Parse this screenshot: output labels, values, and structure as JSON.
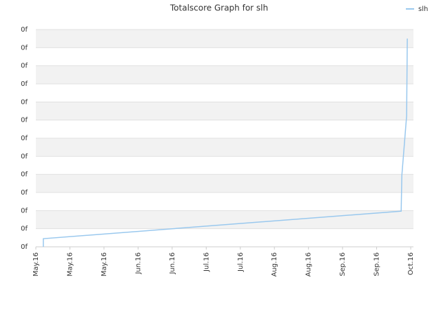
{
  "chart_data": {
    "type": "line",
    "title": "Totalscore Graph for slh",
    "x": [
      0.22,
      0.22,
      10.72,
      10.74,
      10.88,
      10.9
    ],
    "series": [
      {
        "name": "slh",
        "color": "#99c8ee",
        "values": [
          0,
          0.45,
          1.97,
          3.94,
          7.23,
          11.5
        ]
      }
    ],
    "xlim": [
      0,
      11.08
    ],
    "xticks": [
      {
        "value": 0,
        "label": "May.16"
      },
      {
        "value": 1,
        "label": "May.16"
      },
      {
        "value": 2,
        "label": "May.16"
      },
      {
        "value": 3,
        "label": "Jun.16"
      },
      {
        "value": 4,
        "label": "Jun.16"
      },
      {
        "value": 5,
        "label": "Jul.16"
      },
      {
        "value": 6,
        "label": "Jul.16"
      },
      {
        "value": 7,
        "label": "Aug.16"
      },
      {
        "value": 8,
        "label": "Aug.16"
      },
      {
        "value": 9,
        "label": "Sep.16"
      },
      {
        "value": 10,
        "label": "Sep.16"
      },
      {
        "value": 11,
        "label": "Oct.16"
      }
    ],
    "ylim": [
      0,
      12
    ],
    "yticks": [
      {
        "value": 0,
        "label": "0f"
      },
      {
        "value": 1,
        "label": "0f"
      },
      {
        "value": 2,
        "label": "0f"
      },
      {
        "value": 3,
        "label": "0f"
      },
      {
        "value": 4,
        "label": "0f"
      },
      {
        "value": 5,
        "label": "0f"
      },
      {
        "value": 6,
        "label": "0f"
      },
      {
        "value": 7,
        "label": "0f"
      },
      {
        "value": 8,
        "label": "0f"
      },
      {
        "value": 9,
        "label": "0f"
      },
      {
        "value": 10,
        "label": "0f"
      },
      {
        "value": 11,
        "label": "0f"
      },
      {
        "value": 12,
        "label": "0f"
      }
    ],
    "grid": true,
    "legend": "top-right"
  }
}
